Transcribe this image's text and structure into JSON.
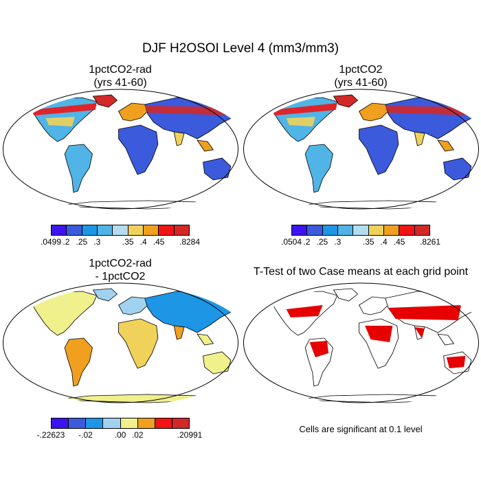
{
  "figure": {
    "title": "DJF H2OSOI Level 4 (mm3/mm3)",
    "footnote": "Cells are significant at 0.1 level"
  },
  "panels": [
    {
      "id": "p1",
      "title_line1": "1pctCO2-rad",
      "title_line2": "(yrs 41-60)",
      "colorbar": {
        "colors": [
          "#3c14f0",
          "#3c5adc",
          "#1e96e6",
          "#50b4e6",
          "#b4dcf0",
          "#f0d25a",
          "#f0a01e",
          "#f01414",
          "#d22828"
        ],
        "labels": [
          ".0499",
          ".2",
          ".25",
          ".3",
          ".35",
          ".4",
          ".45",
          ".8284"
        ]
      }
    },
    {
      "id": "p2",
      "title_line1": "1pctCO2",
      "title_line2": "(yrs 41-60)",
      "colorbar": {
        "colors": [
          "#3c14f0",
          "#3c5adc",
          "#1e96e6",
          "#50b4e6",
          "#b4dcf0",
          "#f0d25a",
          "#f0a01e",
          "#f01414",
          "#d22828"
        ],
        "labels": [
          ".0504",
          ".2",
          ".25",
          ".3",
          ".35",
          ".4",
          ".45",
          ".8261"
        ]
      }
    },
    {
      "id": "p3",
      "title_line1": "1pctCO2-rad",
      "title_line2": "- 1pctCO2",
      "colorbar": {
        "colors": [
          "#3c14f0",
          "#3c5adc",
          "#1e96e6",
          "#a0d2f0",
          "#f0f08c",
          "#f0a01e",
          "#f01414",
          "#d22828"
        ],
        "labels": [
          "-.22623",
          "-.02",
          ".00",
          ".02",
          ".20991"
        ]
      }
    },
    {
      "id": "p4",
      "title_line1": "T-Test of two Case means at each grid point",
      "title_line2": "",
      "significance_color": "#e60000"
    }
  ]
}
